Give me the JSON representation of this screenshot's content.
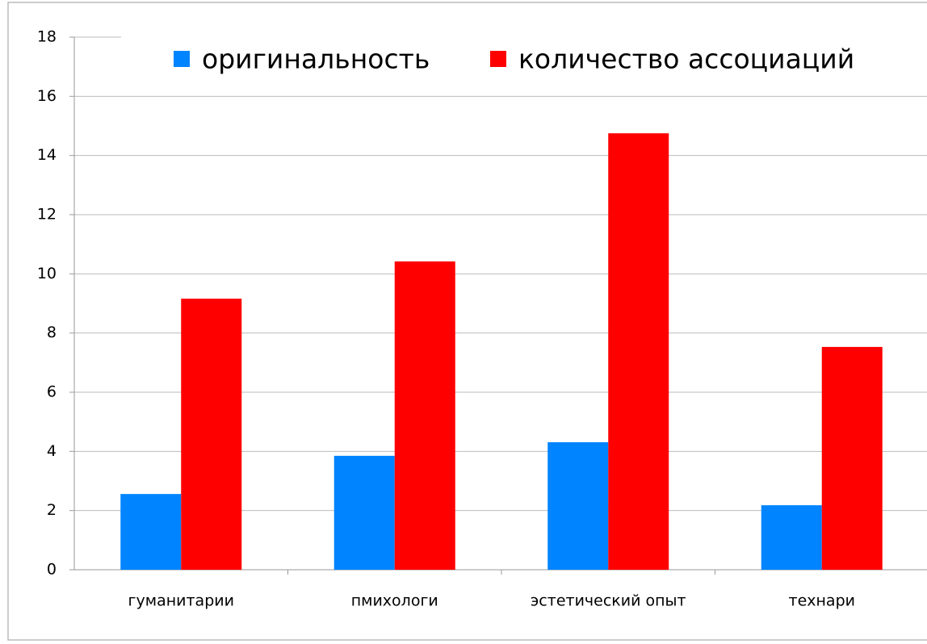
{
  "chart_data": {
    "type": "bar",
    "categories": [
      "гуманитарии",
      "пмихологи",
      "эстетический опыт",
      "технари"
    ],
    "series": [
      {
        "name": "оригинальность",
        "color": "#0084ff",
        "values": [
          2.56,
          3.85,
          4.31,
          2.18
        ]
      },
      {
        "name": "количество ассоциаций",
        "color": "#ff0000",
        "values": [
          9.16,
          10.42,
          14.75,
          7.53
        ]
      }
    ],
    "ylim": [
      0,
      18
    ],
    "yticks": [
      0,
      2,
      4,
      6,
      8,
      10,
      12,
      14,
      16,
      18
    ],
    "grid": true,
    "legend": "top"
  }
}
